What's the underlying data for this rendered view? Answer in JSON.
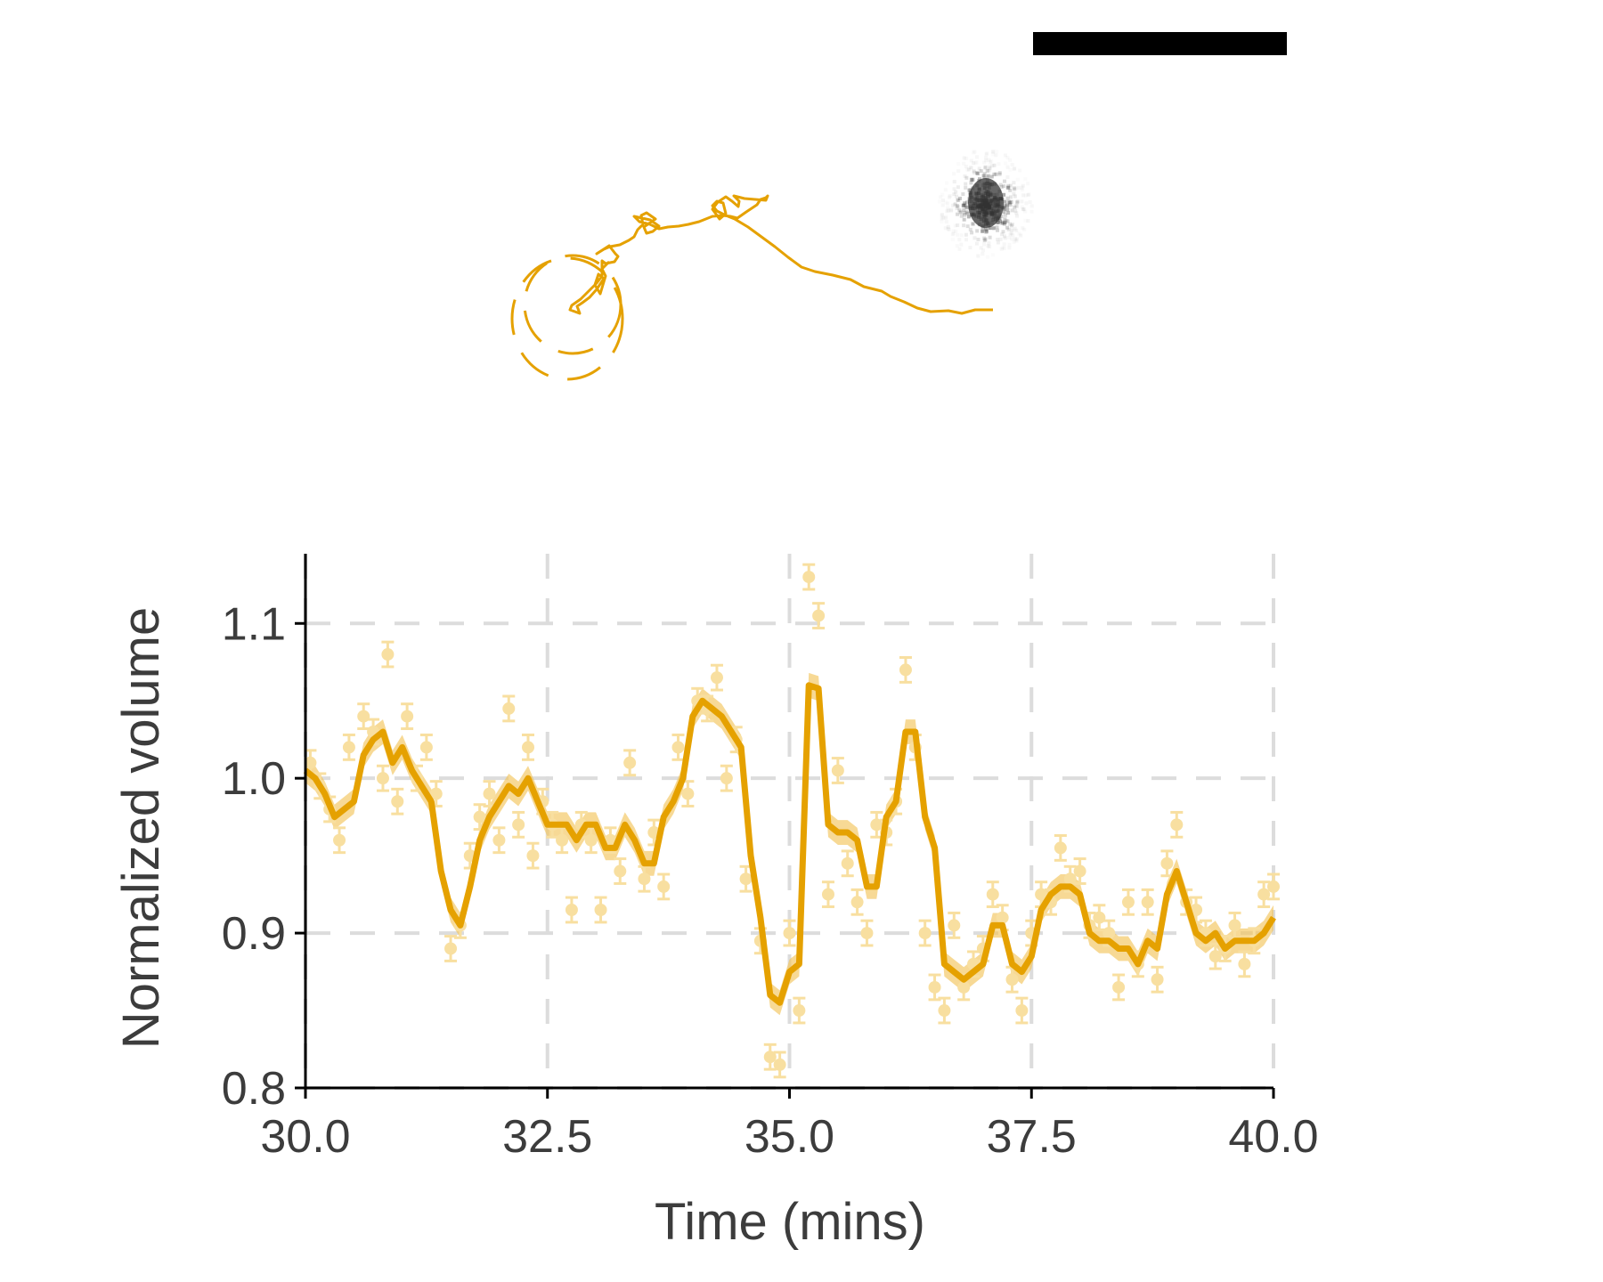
{
  "figure": {
    "trajectory_color": "#E5A100",
    "cell_image_color": "#333333",
    "scale_bar_color": "#000000"
  },
  "chart_data": {
    "type": "line",
    "title": "",
    "xlabel": "Time (mins)",
    "ylabel": "Normalized volume",
    "xlim": [
      30.0,
      40.0
    ],
    "ylim": [
      0.8,
      1.145
    ],
    "xticks": [
      30.0,
      32.5,
      35.0,
      37.5,
      40.0
    ],
    "xtick_labels": [
      "30.0",
      "32.5",
      "35.0",
      "37.5",
      "40.0"
    ],
    "yticks": [
      0.8,
      0.9,
      1.0,
      1.1
    ],
    "ytick_labels": [
      "0.8",
      "0.9",
      "1.0",
      "1.1"
    ],
    "grid": true,
    "legend": "none",
    "colors": {
      "smoothed_line": "#E5A100",
      "band": "#F2C55C",
      "raw_points": "#F8DFA0",
      "grid": "#dcdcdc",
      "axis": "#000000"
    },
    "series": [
      {
        "style": "smoothed line with shaded uncertainty band",
        "x": [
          30.0,
          30.1,
          30.2,
          30.3,
          30.4,
          30.5,
          30.6,
          30.7,
          30.8,
          30.9,
          31.0,
          31.1,
          31.2,
          31.3,
          31.4,
          31.5,
          31.6,
          31.7,
          31.8,
          31.9,
          32.0,
          32.1,
          32.2,
          32.3,
          32.4,
          32.5,
          32.6,
          32.7,
          32.8,
          32.9,
          33.0,
          33.1,
          33.2,
          33.3,
          33.4,
          33.5,
          33.6,
          33.7,
          33.8,
          33.9,
          34.0,
          34.1,
          34.2,
          34.3,
          34.4,
          34.5,
          34.6,
          34.7,
          34.8,
          34.9,
          35.0,
          35.1,
          35.2,
          35.3,
          35.4,
          35.5,
          35.6,
          35.7,
          35.8,
          35.9,
          36.0,
          36.1,
          36.2,
          36.3,
          36.4,
          36.5,
          36.6,
          36.7,
          36.8,
          36.9,
          37.0,
          37.1,
          37.2,
          37.3,
          37.4,
          37.5,
          37.6,
          37.7,
          37.8,
          37.9,
          38.0,
          38.1,
          38.2,
          38.3,
          38.4,
          38.5,
          38.6,
          38.7,
          38.8,
          38.9,
          39.0,
          39.1,
          39.2,
          39.3,
          39.4,
          39.5,
          39.6,
          39.7,
          39.8,
          39.9,
          40.0
        ],
        "y": [
          1.005,
          1.0,
          0.99,
          0.975,
          0.98,
          0.985,
          1.015,
          1.025,
          1.03,
          1.01,
          1.02,
          1.005,
          0.995,
          0.985,
          0.94,
          0.915,
          0.905,
          0.93,
          0.96,
          0.975,
          0.985,
          0.995,
          0.99,
          1.0,
          0.985,
          0.97,
          0.97,
          0.97,
          0.96,
          0.97,
          0.97,
          0.955,
          0.955,
          0.97,
          0.96,
          0.945,
          0.945,
          0.975,
          0.985,
          1.0,
          1.04,
          1.05,
          1.045,
          1.04,
          1.03,
          1.02,
          0.95,
          0.91,
          0.86,
          0.855,
          0.875,
          0.88,
          1.06,
          1.058,
          0.97,
          0.965,
          0.965,
          0.96,
          0.93,
          0.93,
          0.975,
          0.985,
          1.03,
          1.03,
          0.975,
          0.955,
          0.88,
          0.875,
          0.87,
          0.875,
          0.88,
          0.905,
          0.905,
          0.88,
          0.875,
          0.885,
          0.915,
          0.925,
          0.93,
          0.93,
          0.925,
          0.9,
          0.895,
          0.895,
          0.89,
          0.89,
          0.88,
          0.895,
          0.89,
          0.925,
          0.94,
          0.92,
          0.9,
          0.895,
          0.9,
          0.89,
          0.895,
          0.895,
          0.895,
          0.9,
          0.91
        ]
      },
      {
        "style": "raw measurements with error bars",
        "x": [
          30.05,
          30.15,
          30.25,
          30.35,
          30.45,
          30.6,
          30.7,
          30.8,
          30.85,
          30.95,
          31.05,
          31.15,
          31.25,
          31.35,
          31.5,
          31.6,
          31.7,
          31.8,
          31.9,
          32.0,
          32.1,
          32.2,
          32.3,
          32.35,
          32.45,
          32.55,
          32.65,
          32.75,
          32.85,
          32.95,
          33.05,
          33.15,
          33.25,
          33.35,
          33.5,
          33.6,
          33.7,
          33.85,
          33.95,
          34.05,
          34.15,
          34.25,
          34.35,
          34.45,
          34.55,
          34.7,
          34.8,
          34.9,
          35.0,
          35.1,
          35.2,
          35.3,
          35.4,
          35.5,
          35.6,
          35.7,
          35.8,
          35.9,
          36.0,
          36.1,
          36.2,
          36.3,
          36.4,
          36.5,
          36.6,
          36.7,
          36.8,
          36.9,
          37.0,
          37.1,
          37.2,
          37.3,
          37.4,
          37.5,
          37.6,
          37.7,
          37.8,
          37.9,
          38.0,
          38.1,
          38.2,
          38.3,
          38.4,
          38.5,
          38.6,
          38.7,
          38.8,
          38.9,
          39.0,
          39.1,
          39.2,
          39.3,
          39.4,
          39.5,
          39.6,
          39.7,
          39.8,
          39.9,
          40.0
        ],
        "y": [
          1.01,
          0.995,
          0.98,
          0.96,
          1.02,
          1.04,
          1.03,
          1.0,
          1.08,
          0.985,
          1.04,
          1.0,
          1.02,
          0.99,
          0.89,
          0.905,
          0.95,
          0.975,
          0.99,
          0.96,
          1.045,
          0.97,
          1.02,
          0.95,
          0.985,
          0.97,
          0.96,
          0.915,
          0.97,
          0.96,
          0.915,
          0.96,
          0.94,
          1.01,
          0.935,
          0.965,
          0.93,
          1.02,
          0.99,
          1.05,
          1.045,
          1.065,
          1.0,
          1.025,
          0.935,
          0.895,
          0.82,
          0.815,
          0.9,
          0.85,
          1.13,
          1.105,
          0.925,
          1.005,
          0.945,
          0.92,
          0.9,
          0.97,
          0.965,
          0.985,
          1.07,
          1.02,
          0.9,
          0.865,
          0.85,
          0.905,
          0.865,
          0.88,
          0.89,
          0.925,
          0.91,
          0.87,
          0.85,
          0.9,
          0.925,
          0.92,
          0.955,
          0.935,
          0.94,
          0.905,
          0.91,
          0.9,
          0.865,
          0.92,
          0.88,
          0.92,
          0.87,
          0.945,
          0.97,
          0.92,
          0.915,
          0.9,
          0.885,
          0.89,
          0.905,
          0.88,
          0.895,
          0.925,
          0.93
        ]
      }
    ]
  }
}
